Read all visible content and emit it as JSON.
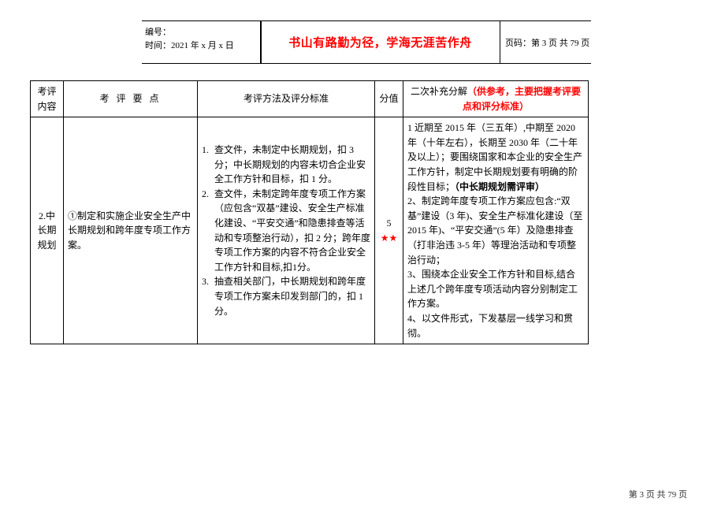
{
  "header": {
    "left_line1": "编号：",
    "left_line2": "时间：2021 年 x 月 x 日",
    "mid": "书山有路勤为径，学海无涯苦作舟",
    "right": "页码：第 3 页 共 79 页"
  },
  "columns": {
    "c1": "考评内容",
    "c2": "考 评 要 点",
    "c3": "考评方法及评分标准",
    "c4": "分值",
    "c5_plain": "二次补充分解",
    "c5_red": "（供参考，主要把握考评要点和评分标准）"
  },
  "row": {
    "col1": "2.中长期规划",
    "col2": "①制定和实施企业安全生产中长期规划和跨年度专项工作方案。",
    "col3_items": [
      "查文件，未制定中长期规划，扣 3 分；中长期规划的内容未切合企业安全工作方针和目标，扣 1 分。",
      "查文件，未制定跨年度专项工作方案（应包含“双基”建设、安全生产标准化建设、“平安交通”和隐患排查等活动和专项整治行动），扣 2 分；跨年度专项工作方案的内容不符合企业安全工作方针和目标,扣1分。",
      "抽查相关部门，中长期规划和跨年度专项工作方案未印发到部门的，扣 1 分。"
    ],
    "score": "5",
    "stars": "★★",
    "col5_p1a": "1 近期至 2015 年（三五年）,中期至 2020 年（十年左右），长期至 2030 年（二十年及以上）；要围绕国家和本企业的安全生产工作方针，制定中长期规划要有明确的阶段性目标；",
    "col5_p1b": "（中长期规划需评审）",
    "col5_p2": "2、制定跨年度专项工作方案应包含:“双基”建设（3 年)、安全生产标准化建设（至 2015 年)、“平安交通”(5 年）及隐患排查（打非治违 3-5 年）等理治活动和专项整治行动；",
    "col5_p3": "3、围绕本企业安全工作方针和目标,结合上述几个跨年度专项活动内容分别制定工作方案。",
    "col5_p4": "4、以文件形式，下发基层一线学习和贯彻。"
  },
  "footer": "第 3 页 共 79 页"
}
